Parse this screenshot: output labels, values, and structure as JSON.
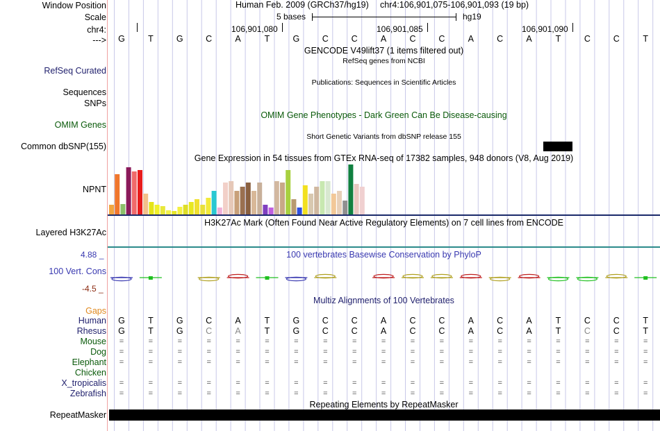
{
  "header": {
    "window_position_label": "Window Position",
    "assembly": "Human Feb. 2009 (GRCh37/hg19)",
    "coordinates": "chr4:106,901,075-106,901,093 (19 bp)",
    "scale_label": "Scale",
    "scale_text": "5 bases",
    "scale_db": "hg19",
    "chrom_label": "chr4:",
    "positions": [
      "106,901,080",
      "106,901,085",
      "106,901,090"
    ],
    "strand_label": "--->"
  },
  "sequence": [
    "G",
    "T",
    "G",
    "C",
    "A",
    "T",
    "G",
    "C",
    "C",
    "A",
    "C",
    "C",
    "A",
    "C",
    "A",
    "T",
    "C",
    "C",
    "T"
  ],
  "tracks": {
    "gencode_title": "GENCODE V49lift37 (1 items filtered out)",
    "refseq_label": "RefSeq Curated",
    "refseq_title": "RefSeq genes from NCBI",
    "sequences_label": "Sequences",
    "publications_title": "Publications: Sequences in Scientific Articles",
    "snps_label": "SNPs",
    "omim_label": "OMIM Genes",
    "omim_title": "OMIM Gene Phenotypes - Dark Green Can Be Disease-causing",
    "short_variants_title": "Short Genetic Variants from dbSNP release 155",
    "dbsnp_label": "Common dbSNP(155)",
    "gtex_title": "Gene Expression in 54 tissues from GTEx RNA-seq of 17382 samples, 948 donors (V8, Aug 2019)",
    "npnt_label": "NPNT",
    "h3k27ac_label": "Layered H3K27Ac",
    "h3k27ac_title": "H3K27Ac Mark (Often Found Near Active Regulatory Elements) on 7 cell lines from ENCODE",
    "phylop_max": "4.88 _",
    "phylop_min": "-4.5 _",
    "phylop_label": "100 Vert. Cons",
    "phylop_title": "100 vertebrates Basewise Conservation by PhyloP",
    "gaps_label": "Gaps",
    "multiz_title": "Multiz Alignments of 100 Vertebrates",
    "repeat_title": "Repeating Elements by RepeatMasker",
    "repeat_label": "RepeatMasker"
  },
  "species": [
    {
      "name": "Human",
      "row": "seq"
    },
    {
      "name": "Rhesus",
      "row": "rhesus"
    },
    {
      "name": "Mouse",
      "row": "eq"
    },
    {
      "name": "Dog",
      "row": "eq"
    },
    {
      "name": "Elephant",
      "row": "eq"
    },
    {
      "name": "Chicken",
      "row": "none"
    },
    {
      "name": "X_tropicalis",
      "row": "eq"
    },
    {
      "name": "Zebrafish",
      "row": "eq"
    }
  ],
  "colors": {
    "label_navy": "#22226e",
    "label_green": "#0a5a0a",
    "label_orange": "#e08a20",
    "phylop_blue": "#3838b0",
    "phylop_red": "#8b2a10"
  },
  "gtex_values": [
    {
      "h": 14,
      "c": "#f2a640"
    },
    {
      "h": 58,
      "c": "#f0772d"
    },
    {
      "h": 15,
      "c": "#8bbf6a"
    },
    {
      "h": 68,
      "c": "#8a1a5a"
    },
    {
      "h": 62,
      "c": "#f06a6a"
    },
    {
      "h": 64,
      "c": "#e81c1c"
    },
    {
      "h": 30,
      "c": "#f3c08a"
    },
    {
      "h": 18,
      "c": "#e4e418"
    },
    {
      "h": 14,
      "c": "#f0f02a"
    },
    {
      "h": 12,
      "c": "#e8e83a"
    },
    {
      "h": 6,
      "c": "#f2f24a"
    },
    {
      "h": 5,
      "c": "#e6e62a"
    },
    {
      "h": 11,
      "c": "#f4f040"
    },
    {
      "h": 14,
      "c": "#dede28"
    },
    {
      "h": 18,
      "c": "#e8e820"
    },
    {
      "h": 22,
      "c": "#f0e030"
    },
    {
      "h": 14,
      "c": "#e8e03a"
    },
    {
      "h": 24,
      "c": "#f2ea3a"
    },
    {
      "h": 34,
      "c": "#2ac8d2"
    },
    {
      "h": 10,
      "c": "#f0b0d8"
    },
    {
      "h": 46,
      "c": "#f2d0c8"
    },
    {
      "h": 48,
      "c": "#e6c8b8"
    },
    {
      "h": 34,
      "c": "#c8a07a"
    },
    {
      "h": 40,
      "c": "#9a7050"
    },
    {
      "h": 46,
      "c": "#8a6040"
    },
    {
      "h": 34,
      "c": "#d8b898"
    },
    {
      "h": 46,
      "c": "#c8b09a"
    },
    {
      "h": 14,
      "c": "#8040c0"
    },
    {
      "h": 10,
      "c": "#c060e0"
    },
    {
      "h": 48,
      "c": "#d2b8a0"
    },
    {
      "h": 46,
      "c": "#c8a888"
    },
    {
      "h": 64,
      "c": "#a8d040"
    },
    {
      "h": 22,
      "c": "#b89a70"
    },
    {
      "h": 10,
      "c": "#3050e0"
    },
    {
      "h": 42,
      "c": "#f2e020"
    },
    {
      "h": 30,
      "c": "#d8c8b0"
    },
    {
      "h": 40,
      "c": "#d0b8a0"
    },
    {
      "h": 48,
      "c": "#c8e8b0"
    },
    {
      "h": 48,
      "c": "#d8e8d0"
    },
    {
      "h": 30,
      "c": "#f2c898"
    },
    {
      "h": 34,
      "c": "#e8d0b8"
    },
    {
      "h": 20,
      "c": "#909090"
    },
    {
      "h": 72,
      "c": "#108040"
    },
    {
      "h": 44,
      "c": "#e8c8c0"
    },
    {
      "h": 40,
      "c": "#f0d0d0"
    }
  ],
  "phylop_glyphs": [
    {
      "col": 0,
      "color": "#3838b0",
      "dir": "down"
    },
    {
      "col": 1,
      "color": "#20c020",
      "dir": "flat"
    },
    {
      "col": 3,
      "color": "#b0a020",
      "dir": "down"
    },
    {
      "col": 4,
      "color": "#c02020",
      "dir": "up"
    },
    {
      "col": 5,
      "color": "#20c020",
      "dir": "flat"
    },
    {
      "col": 6,
      "color": "#3838b0",
      "dir": "down"
    },
    {
      "col": 7,
      "color": "#b0a020",
      "dir": "up"
    },
    {
      "col": 9,
      "color": "#c02020",
      "dir": "up"
    },
    {
      "col": 10,
      "color": "#b0a020",
      "dir": "up"
    },
    {
      "col": 11,
      "color": "#b0a020",
      "dir": "up"
    },
    {
      "col": 12,
      "color": "#c02020",
      "dir": "up"
    },
    {
      "col": 13,
      "color": "#b0a020",
      "dir": "down"
    },
    {
      "col": 14,
      "color": "#c02020",
      "dir": "up"
    },
    {
      "col": 15,
      "color": "#20c020",
      "dir": "down"
    },
    {
      "col": 16,
      "color": "#20c020",
      "dir": "down"
    },
    {
      "col": 17,
      "color": "#b0a020",
      "dir": "up"
    },
    {
      "col": 18,
      "color": "#20c020",
      "dir": "flat"
    }
  ]
}
